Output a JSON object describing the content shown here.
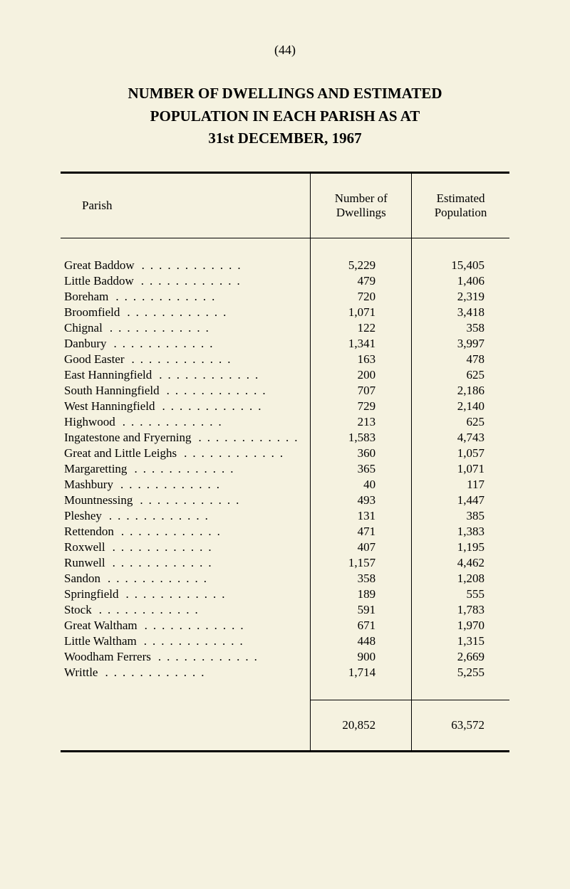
{
  "page_number": "(44)",
  "title_line1": "NUMBER OF DWELLINGS AND ESTIMATED",
  "title_line2": "POPULATION IN EACH PARISH AS AT",
  "title_line3": "31st DECEMBER, 1967",
  "headers": {
    "parish": "Parish",
    "dwellings_line1": "Number of",
    "dwellings_line2": "Dwellings",
    "population_line1": "Estimated",
    "population_line2": "Population"
  },
  "rows": [
    {
      "parish": "Great Baddow",
      "dwellings": "5,229",
      "population": "15,405"
    },
    {
      "parish": "Little Baddow",
      "dwellings": "479",
      "population": "1,406"
    },
    {
      "parish": "Boreham",
      "dwellings": "720",
      "population": "2,319"
    },
    {
      "parish": "Broomfield",
      "dwellings": "1,071",
      "population": "3,418"
    },
    {
      "parish": "Chignal",
      "dwellings": "122",
      "population": "358"
    },
    {
      "parish": "Danbury",
      "dwellings": "1,341",
      "population": "3,997"
    },
    {
      "parish": "Good Easter",
      "dwellings": "163",
      "population": "478"
    },
    {
      "parish": "East Hanningfield",
      "dwellings": "200",
      "population": "625"
    },
    {
      "parish": "South Hanningfield",
      "dwellings": "707",
      "population": "2,186"
    },
    {
      "parish": "West Hanningfield",
      "dwellings": "729",
      "population": "2,140"
    },
    {
      "parish": "Highwood",
      "dwellings": "213",
      "population": "625"
    },
    {
      "parish": "Ingatestone and Fryerning",
      "dwellings": "1,583",
      "population": "4,743"
    },
    {
      "parish": "Great and Little Leighs",
      "dwellings": "360",
      "population": "1,057"
    },
    {
      "parish": "Margaretting",
      "dwellings": "365",
      "population": "1,071"
    },
    {
      "parish": "Mashbury",
      "dwellings": "40",
      "population": "117"
    },
    {
      "parish": "Mountnessing",
      "dwellings": "493",
      "population": "1,447"
    },
    {
      "parish": "Pleshey",
      "dwellings": "131",
      "population": "385"
    },
    {
      "parish": "Rettendon",
      "dwellings": "471",
      "population": "1,383"
    },
    {
      "parish": "Roxwell",
      "dwellings": "407",
      "population": "1,195"
    },
    {
      "parish": "Runwell",
      "dwellings": "1,157",
      "population": "4,462"
    },
    {
      "parish": "Sandon",
      "dwellings": "358",
      "population": "1,208"
    },
    {
      "parish": "Springfield",
      "dwellings": "189",
      "population": "555"
    },
    {
      "parish": "Stock",
      "dwellings": "591",
      "population": "1,783"
    },
    {
      "parish": "Great Waltham",
      "dwellings": "671",
      "population": "1,970"
    },
    {
      "parish": "Little Waltham",
      "dwellings": "448",
      "population": "1,315"
    },
    {
      "parish": "Woodham Ferrers",
      "dwellings": "900",
      "population": "2,669"
    },
    {
      "parish": "Writtle",
      "dwellings": "1,714",
      "population": "5,255"
    }
  ],
  "totals": {
    "dwellings": "20,852",
    "population": "63,572"
  },
  "colors": {
    "background": "#f5f2e0",
    "text": "#000000",
    "rule": "#000000"
  },
  "typography": {
    "font_family": "Times New Roman",
    "body_fontsize": 17,
    "title_fontsize": 21
  }
}
